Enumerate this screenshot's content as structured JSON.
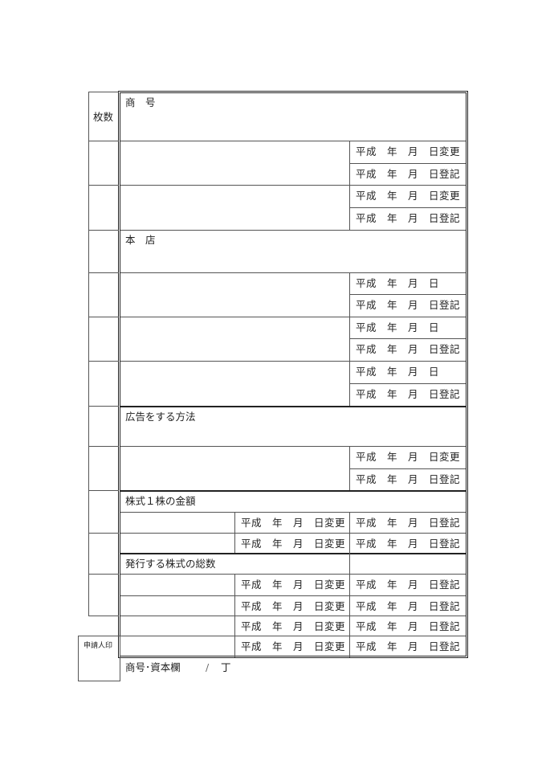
{
  "header": {
    "count_label": "枚数"
  },
  "sections": {
    "trade_name": "商　号",
    "head_office": "本　店",
    "public_notice": "広告をする方法",
    "share_value": "株式１株の金額",
    "total_shares": "発行する株式の総数"
  },
  "date_labels": {
    "change": "平成　年　月　日変更",
    "registered": "平成　年　月　日登記",
    "date": "平成　年　月　日"
  },
  "footer": {
    "seal_label": "申請人印",
    "sheet_title": "商号･資本欄",
    "page_sep": "/",
    "page_unit": "丁"
  }
}
